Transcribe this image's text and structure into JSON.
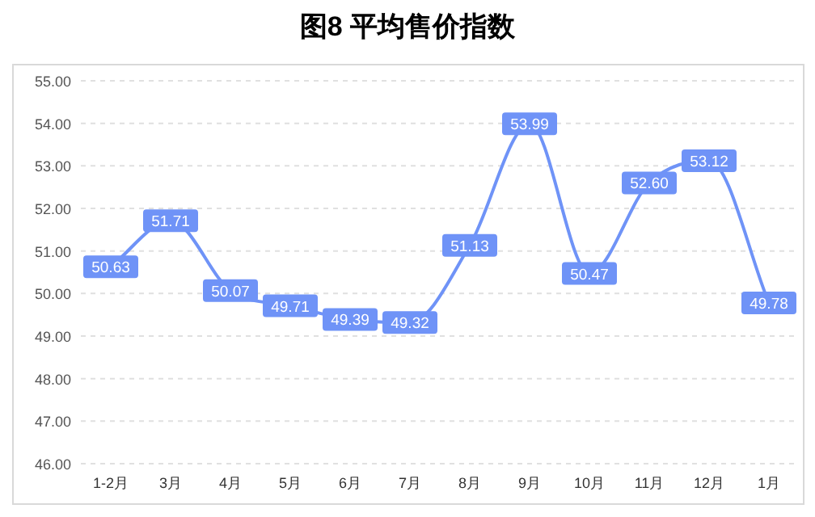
{
  "chart_data": {
    "type": "line",
    "title": "图8 平均售价指数",
    "categories": [
      "1-2月",
      "3月",
      "4月",
      "5月",
      "6月",
      "7月",
      "8月",
      "9月",
      "10月",
      "11月",
      "12月",
      "1月"
    ],
    "series": [
      {
        "color": "#6f93f7",
        "values": [
          50.63,
          51.71,
          50.07,
          49.71,
          49.39,
          49.32,
          51.13,
          53.99,
          50.47,
          52.6,
          53.12,
          49.78
        ],
        "value_labels": [
          "50.63",
          "51.71",
          "50.07",
          "49.71",
          "49.39",
          "49.32",
          "51.13",
          "53.99",
          "50.47",
          "52.60",
          "53.12",
          "49.78"
        ]
      }
    ],
    "ylim": [
      46,
      55
    ],
    "yticks": [
      {
        "value": 46,
        "label": "46.00"
      },
      {
        "value": 47,
        "label": "47.00"
      },
      {
        "value": 48,
        "label": "48.00"
      },
      {
        "value": 49,
        "label": "49.00"
      },
      {
        "value": 50,
        "label": "50.00"
      },
      {
        "value": 51,
        "label": "51.00"
      },
      {
        "value": 52,
        "label": "52.00"
      },
      {
        "value": 53,
        "label": "53.00"
      },
      {
        "value": 54,
        "label": "54.00"
      },
      {
        "value": 55,
        "label": "55.00"
      }
    ],
    "grid": "y",
    "marker": "square",
    "line_style": "solid"
  }
}
